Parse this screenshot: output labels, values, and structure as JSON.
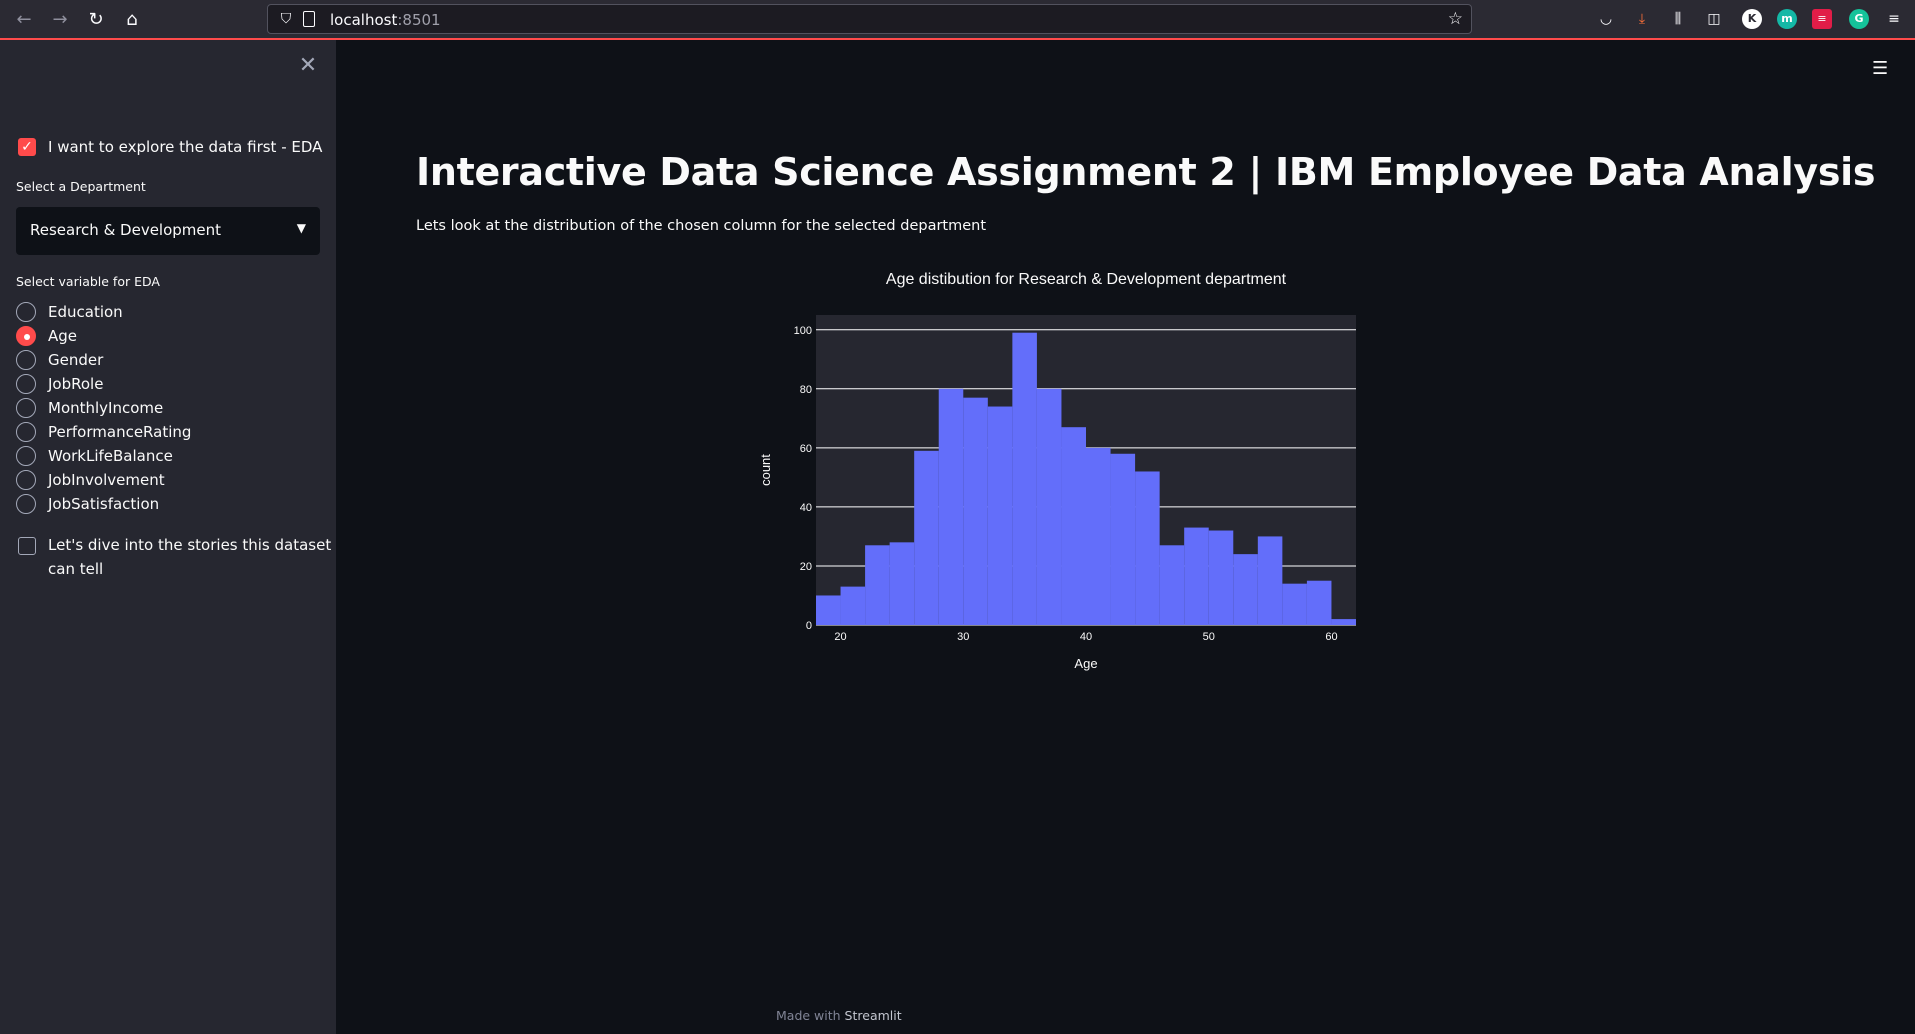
{
  "browser": {
    "url_host": "localhost",
    "url_port": ":8501",
    "colors": {
      "accent": "#ff4b4b"
    }
  },
  "sidebar": {
    "eda_checkbox_label": "I want to explore the data first - EDA",
    "eda_checked": true,
    "department_label": "Select a Department",
    "department_value": "Research & Development",
    "variable_label": "Select variable for EDA",
    "variables": [
      "Education",
      "Age",
      "Gender",
      "JobRole",
      "MonthlyIncome",
      "PerformanceRating",
      "WorkLifeBalance",
      "JobInvolvement",
      "JobSatisfaction"
    ],
    "selected_variable": "Age",
    "stories_checkbox_line1": "Let's dive into the stories this dataset",
    "stories_checkbox_line2": "can tell",
    "stories_checked": false
  },
  "main": {
    "title": "Interactive Data Science Assignment 2 | IBM Employee Data Analysis",
    "subtitle": "Lets look at the distribution of the chosen column for the selected department"
  },
  "footer": {
    "prefix": "Made with ",
    "brand": "Streamlit"
  },
  "chart_data": {
    "type": "bar",
    "title": "Age distibution for Research & Development department",
    "xlabel": "Age",
    "ylabel": "count",
    "bin_start": 18,
    "bin_width": 2,
    "values": [
      10,
      13,
      27,
      28,
      59,
      80,
      77,
      74,
      99,
      80,
      67,
      60,
      58,
      52,
      27,
      33,
      32,
      24,
      30,
      14,
      15,
      2
    ],
    "xlim": [
      18,
      62
    ],
    "ylim": [
      0,
      105
    ],
    "xticks": [
      20,
      30,
      40,
      50,
      60
    ],
    "yticks": [
      0,
      20,
      40,
      60,
      80,
      100
    ],
    "bar_color": "#636efa",
    "plot_bg": "#262730",
    "grid": true
  }
}
